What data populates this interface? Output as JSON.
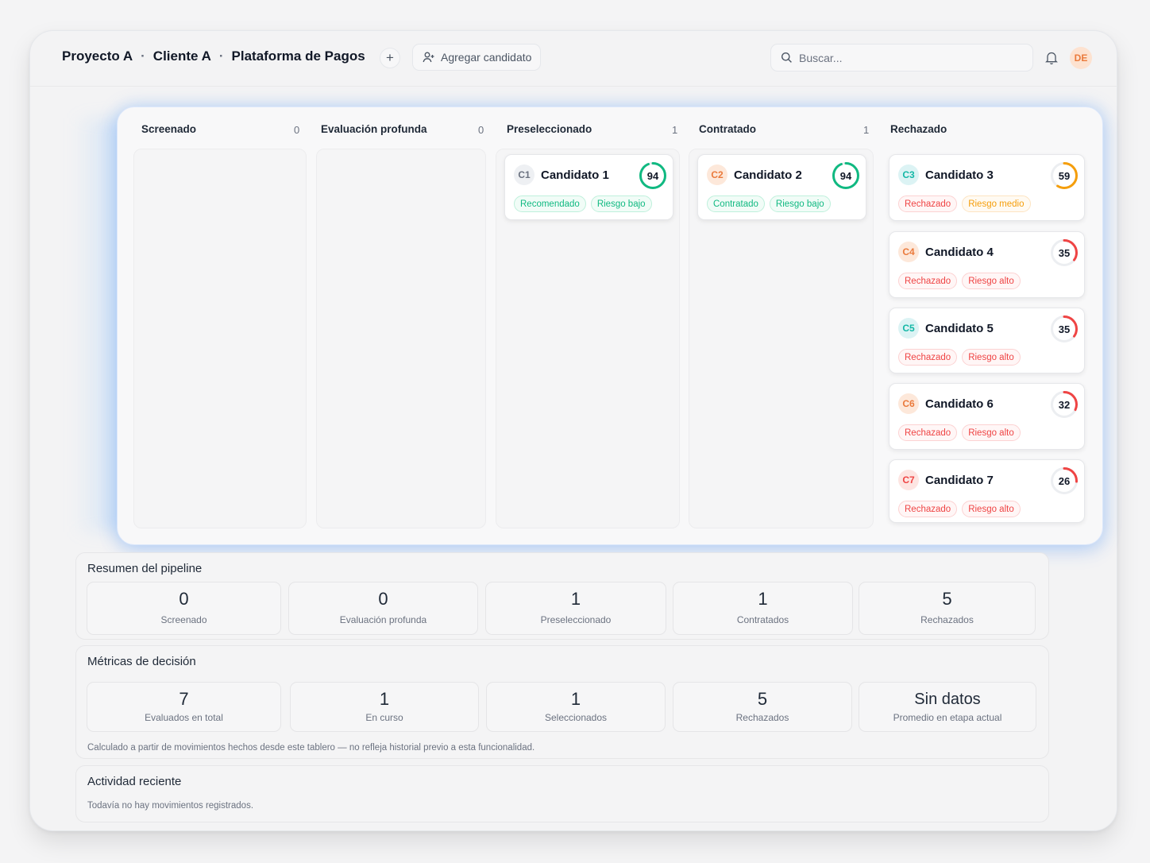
{
  "header": {
    "breadcrumb": [
      "Proyecto A",
      "Cliente A",
      "Plataforma de Pagos"
    ],
    "separator": "·",
    "add_button_label": "Agregar candidato",
    "search_placeholder": "Buscar...",
    "user_initials": "DE"
  },
  "board": {
    "columns": [
      {
        "title": "Screenado",
        "count": "0"
      },
      {
        "title": "Evaluación profunda",
        "count": "0"
      },
      {
        "title": "Preseleccionado",
        "count": "1"
      },
      {
        "title": "Contratado",
        "count": "1"
      },
      {
        "title": "Rechazado",
        "count": ""
      }
    ],
    "candidates": [
      {
        "code": "C1",
        "name": "Candidato 1",
        "score": "94",
        "score_fraction": 0.94,
        "ring_color": "#10b981",
        "badge_bg": "#eef0f3",
        "badge_fg": "#6b7280",
        "tags": [
          {
            "label": "Recomendado",
            "tone": "green"
          },
          {
            "label": "Riesgo bajo",
            "tone": "green"
          }
        ]
      },
      {
        "code": "C2",
        "name": "Candidato 2",
        "score": "94",
        "score_fraction": 0.94,
        "ring_color": "#10b981",
        "badge_bg": "#fde8da",
        "badge_fg": "#ea7a3c",
        "tags": [
          {
            "label": "Contratado",
            "tone": "green"
          },
          {
            "label": "Riesgo bajo",
            "tone": "green"
          }
        ]
      },
      {
        "code": "C3",
        "name": "Candidato 3",
        "score": "59",
        "score_fraction": 0.59,
        "ring_color": "#f59e0b",
        "badge_bg": "#dcf3f4",
        "badge_fg": "#14b8a6",
        "tags": [
          {
            "label": "Rechazado",
            "tone": "red"
          },
          {
            "label": "Riesgo medio",
            "tone": "orange"
          }
        ]
      },
      {
        "code": "C4",
        "name": "Candidato 4",
        "score": "35",
        "score_fraction": 0.35,
        "ring_color": "#ef4444",
        "badge_bg": "#fde8da",
        "badge_fg": "#ea7a3c",
        "tags": [
          {
            "label": "Rechazado",
            "tone": "red"
          },
          {
            "label": "Riesgo alto",
            "tone": "red"
          }
        ]
      },
      {
        "code": "C5",
        "name": "Candidato 5",
        "score": "35",
        "score_fraction": 0.35,
        "ring_color": "#ef4444",
        "badge_bg": "#dcf3f4",
        "badge_fg": "#14b8a6",
        "tags": [
          {
            "label": "Rechazado",
            "tone": "red"
          },
          {
            "label": "Riesgo alto",
            "tone": "red"
          }
        ]
      },
      {
        "code": "C6",
        "name": "Candidato 6",
        "score": "32",
        "score_fraction": 0.32,
        "ring_color": "#ef4444",
        "badge_bg": "#fde8da",
        "badge_fg": "#ea7a3c",
        "tags": [
          {
            "label": "Rechazado",
            "tone": "red"
          },
          {
            "label": "Riesgo alto",
            "tone": "red"
          }
        ]
      },
      {
        "code": "C7",
        "name": "Candidato 7",
        "score": "26",
        "score_fraction": 0.26,
        "ring_color": "#ef4444",
        "badge_bg": "#fde5e2",
        "badge_fg": "#ef4444",
        "tags": [
          {
            "label": "Rechazado",
            "tone": "red"
          },
          {
            "label": "Riesgo alto",
            "tone": "red"
          }
        ]
      }
    ]
  },
  "pipeline_summary": {
    "title": "Resumen del pipeline",
    "stats": [
      {
        "value": "0",
        "label": "Screenado"
      },
      {
        "value": "0",
        "label": "Evaluación profunda"
      },
      {
        "value": "1",
        "label": "Preseleccionado"
      },
      {
        "value": "1",
        "label": "Contratados"
      },
      {
        "value": "5",
        "label": "Rechazados"
      }
    ]
  },
  "decision_metrics": {
    "title": "Métricas de decisión",
    "stats": [
      {
        "value": "7",
        "label": "Evaluados en total"
      },
      {
        "value": "1",
        "label": "En curso"
      },
      {
        "value": "1",
        "label": "Seleccionados"
      },
      {
        "value": "5",
        "label": "Rechazados"
      },
      {
        "value": "Sin datos",
        "label": "Promedio en etapa actual"
      }
    ],
    "note": "Calculado a partir de movimientos hechos desde este tablero — no refleja historial previo a esta funcionalidad."
  },
  "recent_activity": {
    "title": "Actividad reciente",
    "empty_text": "Todavía no hay movimientos registrados."
  }
}
